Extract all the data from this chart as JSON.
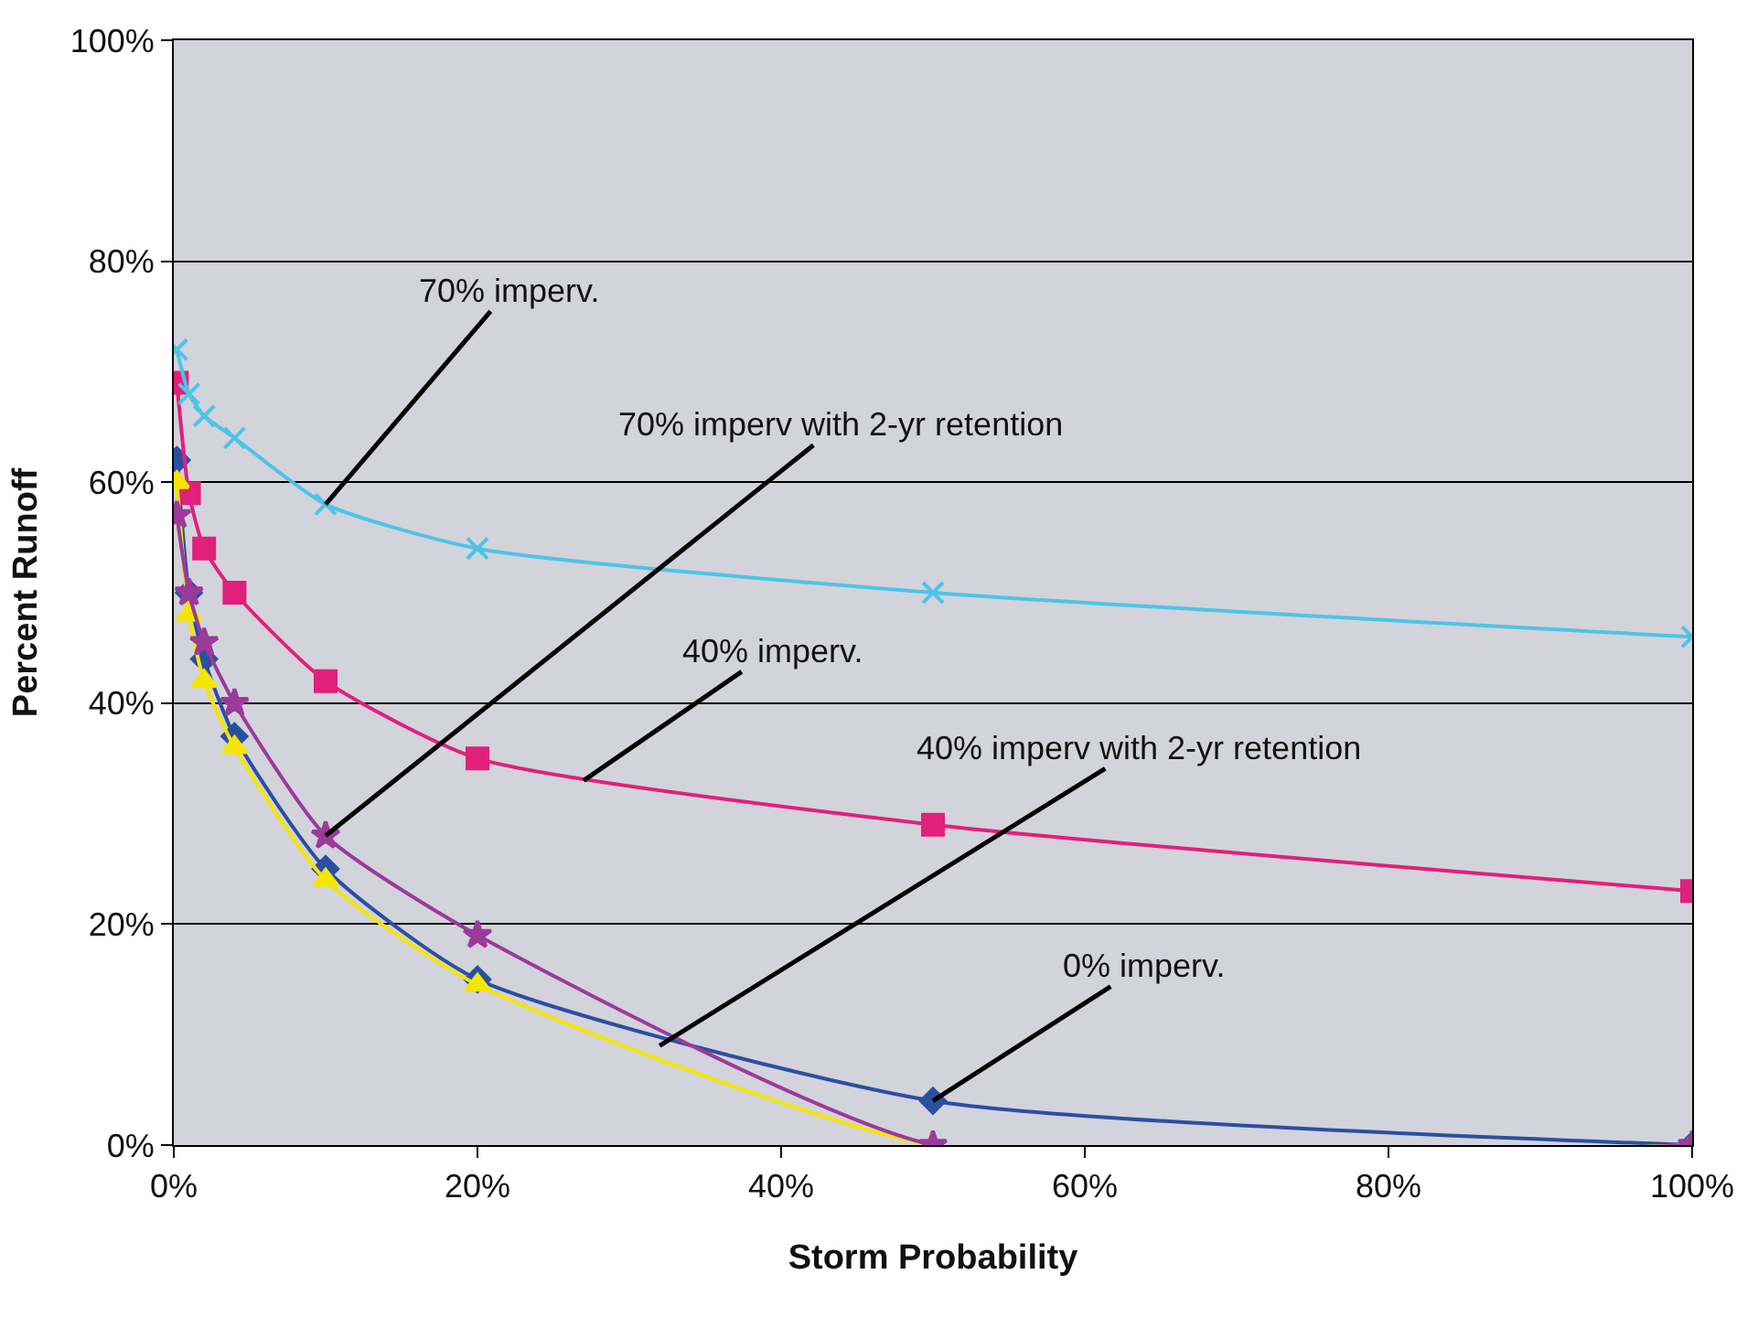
{
  "chart_data": {
    "type": "line",
    "xlabel": "Storm Probability",
    "ylabel": "Percent Runoff",
    "x": [
      0.2,
      1,
      2,
      4,
      10,
      20,
      50,
      100
    ],
    "series": [
      {
        "color": "#2b4fa0",
        "marker": "diamond",
        "values": [
          62,
          50,
          44,
          37,
          25,
          15,
          4,
          0
        ]
      },
      {
        "color": "#e0207a",
        "marker": "square",
        "values": [
          69,
          59,
          54,
          50,
          42,
          35,
          29,
          23
        ]
      },
      {
        "color": "#f5e600",
        "marker": "triangle",
        "values": [
          60,
          48,
          42,
          36,
          24,
          14.5,
          0,
          0
        ]
      },
      {
        "color": "#4cc4e8",
        "marker": "cross",
        "values": [
          72,
          68,
          66,
          64,
          58,
          54,
          50,
          46
        ]
      },
      {
        "color": "#9b3a9b",
        "marker": "star",
        "values": [
          57,
          50,
          45.5,
          40,
          28,
          19,
          0,
          0
        ]
      }
    ],
    "xlim": [
      0,
      100
    ],
    "ylim": [
      0,
      100
    ],
    "xticks": [
      {
        "value": 0,
        "label": "0%"
      },
      {
        "value": 20,
        "label": "20%"
      },
      {
        "value": 40,
        "label": "40%"
      },
      {
        "value": 60,
        "label": "60%"
      },
      {
        "value": 80,
        "label": "80%"
      },
      {
        "value": 100,
        "label": "100%"
      }
    ],
    "yticks": [
      {
        "value": 0,
        "label": "0%"
      },
      {
        "value": 20,
        "label": "20%"
      },
      {
        "value": 40,
        "label": "40%"
      },
      {
        "value": 60,
        "label": "60%"
      },
      {
        "value": 80,
        "label": "80%"
      },
      {
        "value": 100,
        "label": "100%"
      }
    ],
    "grid": "y",
    "line_style": "solid",
    "annotations": [
      {
        "text": "70% imperv.",
        "x": 10,
        "y": 58
      },
      {
        "text": "70% imperv with 2-yr retention",
        "x": 10,
        "y": 28
      },
      {
        "text": "40% imperv.",
        "x": 27,
        "y": 33
      },
      {
        "text": "40% imperv with 2-yr retention",
        "x": 32,
        "y": 9
      },
      {
        "text": "0% imperv.",
        "x": 50,
        "y": 4
      }
    ]
  }
}
